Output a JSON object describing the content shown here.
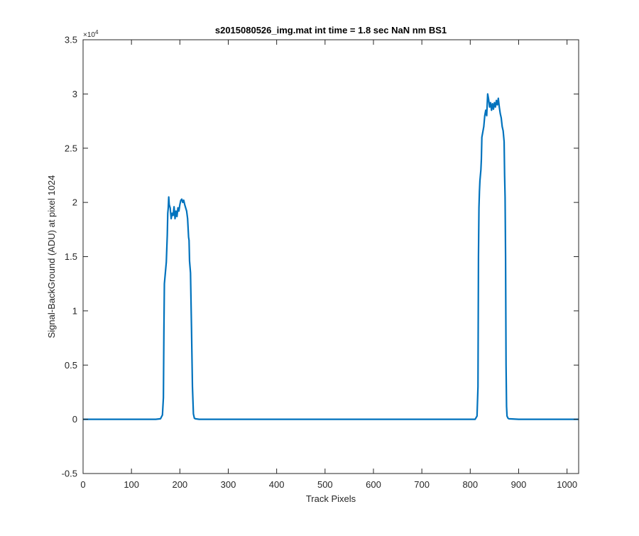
{
  "chart_data": {
    "type": "line",
    "title": "s2015080526_img.mat int time = 1.8 sec  NaN nm BS1",
    "xlabel": "Track Pixels",
    "ylabel": "Signal-BackGround (ADU) at pixel 1024",
    "xlim": [
      0,
      1024
    ],
    "ylim": [
      -5000,
      35000
    ],
    "x_ticks": [
      0,
      100,
      200,
      300,
      400,
      500,
      600,
      700,
      800,
      900,
      1000
    ],
    "y_ticks": [
      -5000,
      0,
      5000,
      10000,
      15000,
      20000,
      25000,
      30000,
      35000
    ],
    "y_tick_labels": [
      "-0.5",
      "0",
      "0.5",
      "1",
      "1.5",
      "2",
      "2.5",
      "3",
      "3.5"
    ],
    "y_exponent_label": "×10",
    "y_exponent_power": "4",
    "grid": false,
    "legend": "none",
    "series": [
      {
        "color": "#0072BD",
        "x": [
          0,
          50,
          100,
          150,
          160,
          164,
          166,
          167,
          168,
          170,
          172,
          174,
          175,
          176,
          177,
          178,
          180,
          182,
          184,
          186,
          188,
          190,
          192,
          194,
          196,
          198,
          200,
          202,
          204,
          206,
          208,
          210,
          212,
          214,
          216,
          218,
          219,
          220,
          222,
          224,
          226,
          228,
          230,
          232,
          240,
          300,
          400,
          500,
          600,
          700,
          780,
          810,
          814,
          816,
          817,
          818,
          819,
          820,
          822,
          823,
          824,
          826,
          828,
          830,
          832,
          834,
          836,
          838,
          840,
          842,
          844,
          846,
          848,
          850,
          852,
          854,
          856,
          858,
          860,
          862,
          864,
          866,
          868,
          870,
          871,
          872,
          873,
          874,
          875,
          876,
          878,
          880,
          900,
          950,
          1000,
          1024
        ],
        "y": [
          0,
          0,
          0,
          0,
          50,
          400,
          2000,
          8000,
          12500,
          13500,
          14500,
          17000,
          19000,
          19500,
          20500,
          19800,
          19500,
          18500,
          19000,
          18800,
          19600,
          18500,
          19200,
          18700,
          19500,
          19200,
          19800,
          20200,
          20300,
          20000,
          20200,
          19800,
          19500,
          19200,
          18500,
          16800,
          16500,
          14600,
          13500,
          8500,
          3000,
          500,
          100,
          50,
          0,
          0,
          0,
          0,
          0,
          0,
          0,
          0,
          300,
          3000,
          15000,
          19500,
          21000,
          22000,
          23000,
          24000,
          26000,
          26500,
          27000,
          28000,
          28500,
          28000,
          30000,
          29500,
          28800,
          29200,
          28500,
          29100,
          28600,
          29200,
          28800,
          29400,
          29000,
          29600,
          28800,
          28200,
          27800,
          27000,
          26600,
          25600,
          22500,
          20500,
          15000,
          5000,
          1200,
          300,
          100,
          50,
          0,
          0,
          0,
          0
        ]
      }
    ]
  }
}
